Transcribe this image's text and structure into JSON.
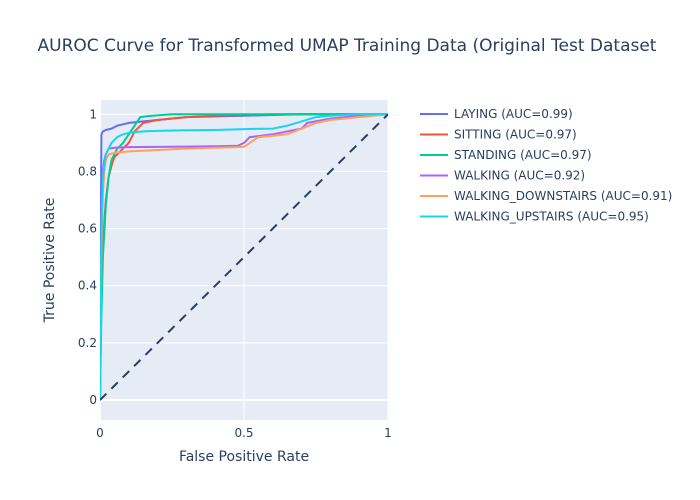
{
  "chart_data": {
    "type": "line",
    "title": "AUROC Curve for Transformed UMAP Training Data (Original Test Dataset",
    "xlabel": "False Positive Rate",
    "ylabel": "True Positive Rate",
    "xlim": [
      0,
      1
    ],
    "ylim": [
      -0.07,
      1.05
    ],
    "xticks": [
      0,
      0.5,
      1
    ],
    "xtick_labels": [
      "0",
      "0.5",
      "1"
    ],
    "yticks": [
      0,
      0.2,
      0.4,
      0.6,
      0.8,
      1
    ],
    "ytick_labels": [
      "0",
      "0.2",
      "0.4",
      "0.6",
      "0.8",
      "1"
    ],
    "grid": true,
    "legend_position": "right",
    "plot_background": "#e5ecf6",
    "series": [
      {
        "name": "LAYING (AUC=0.99)",
        "color": "#636efa",
        "x": [
          0,
          0.002,
          0.005,
          0.01,
          0.02,
          0.04,
          0.06,
          0.08,
          0.1,
          0.15,
          0.2,
          0.3,
          0.5,
          0.7,
          1.0
        ],
        "y": [
          0,
          0.5,
          0.93,
          0.94,
          0.945,
          0.95,
          0.96,
          0.965,
          0.97,
          0.975,
          0.98,
          0.99,
          0.995,
          1.0,
          1.0
        ]
      },
      {
        "name": "SITTING (AUC=0.97)",
        "color": "#ef553b",
        "x": [
          0,
          0.005,
          0.01,
          0.02,
          0.03,
          0.04,
          0.05,
          0.06,
          0.08,
          0.1,
          0.12,
          0.15,
          0.2,
          0.3,
          0.4,
          0.6,
          0.8,
          1.0
        ],
        "y": [
          0,
          0.4,
          0.55,
          0.7,
          0.78,
          0.82,
          0.85,
          0.86,
          0.88,
          0.9,
          0.94,
          0.97,
          0.98,
          0.99,
          0.995,
          1.0,
          1.0,
          1.0
        ]
      },
      {
        "name": "STANDING (AUC=0.97)",
        "color": "#00cc96",
        "x": [
          0,
          0.005,
          0.01,
          0.02,
          0.03,
          0.04,
          0.06,
          0.08,
          0.1,
          0.12,
          0.14,
          0.18,
          0.25,
          0.4,
          0.6,
          1.0
        ],
        "y": [
          0,
          0.3,
          0.5,
          0.68,
          0.78,
          0.84,
          0.88,
          0.9,
          0.93,
          0.96,
          0.99,
          0.995,
          1.0,
          1.0,
          1.0,
          1.0
        ]
      },
      {
        "name": "WALKING (AUC=0.92)",
        "color": "#ab63fa",
        "x": [
          0,
          0.005,
          0.01,
          0.015,
          0.02,
          0.025,
          0.03,
          0.05,
          0.1,
          0.2,
          0.3,
          0.4,
          0.48,
          0.5,
          0.52,
          0.6,
          0.7,
          0.72,
          0.8,
          0.9,
          1.0
        ],
        "y": [
          0,
          0.55,
          0.8,
          0.84,
          0.86,
          0.87,
          0.88,
          0.883,
          0.885,
          0.886,
          0.887,
          0.888,
          0.89,
          0.9,
          0.92,
          0.93,
          0.95,
          0.97,
          0.985,
          0.995,
          1.0
        ]
      },
      {
        "name": "WALKING_DOWNSTAIRS (AUC=0.91)",
        "color": "#ffa15a",
        "x": [
          0,
          0.005,
          0.01,
          0.015,
          0.02,
          0.03,
          0.05,
          0.1,
          0.2,
          0.3,
          0.4,
          0.5,
          0.52,
          0.55,
          0.6,
          0.65,
          0.7,
          0.75,
          0.8,
          0.9,
          1.0
        ],
        "y": [
          0,
          0.5,
          0.72,
          0.8,
          0.84,
          0.86,
          0.865,
          0.87,
          0.875,
          0.88,
          0.883,
          0.886,
          0.9,
          0.92,
          0.925,
          0.93,
          0.95,
          0.97,
          0.98,
          0.99,
          1.0
        ]
      },
      {
        "name": "WALKING_UPSTAIRS (AUC=0.95)",
        "color": "#19d3f3",
        "x": [
          0,
          0.005,
          0.01,
          0.02,
          0.04,
          0.06,
          0.08,
          0.1,
          0.15,
          0.2,
          0.3,
          0.4,
          0.5,
          0.6,
          0.65,
          0.7,
          0.75,
          0.8,
          0.9,
          1.0
        ],
        "y": [
          0,
          0.6,
          0.78,
          0.86,
          0.9,
          0.92,
          0.93,
          0.935,
          0.94,
          0.942,
          0.944,
          0.945,
          0.948,
          0.95,
          0.96,
          0.975,
          0.99,
          0.995,
          1.0,
          1.0
        ]
      }
    ],
    "reference_line": {
      "style": "dashed",
      "color": "#2a3f5f",
      "x": [
        0,
        1
      ],
      "y": [
        0,
        1
      ]
    }
  }
}
